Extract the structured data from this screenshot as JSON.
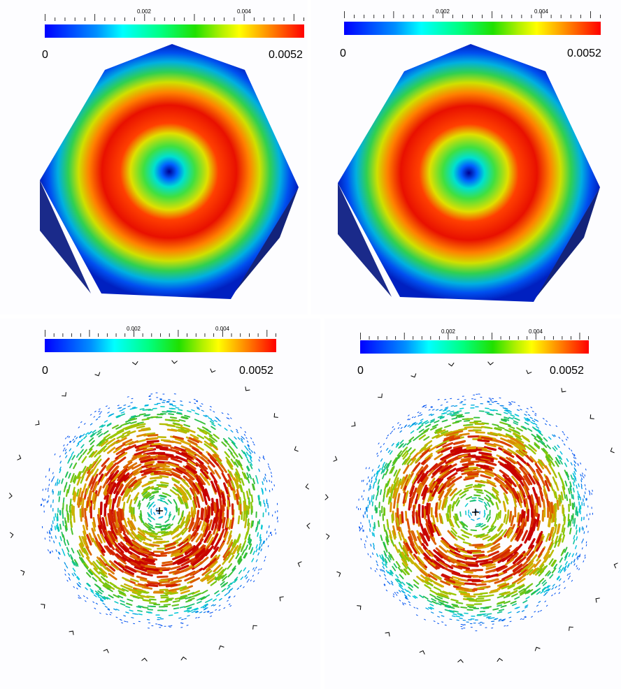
{
  "colorbar": {
    "min_label": "0",
    "max_label": "0.0052",
    "tick_labels": [
      "0.002",
      "0.004"
    ],
    "min": 0,
    "max": 0.0052
  },
  "panels": [
    {
      "id": "top-left-contour",
      "kind": "contour"
    },
    {
      "id": "top-right-contour",
      "kind": "contour"
    },
    {
      "id": "bottom-left-vectors",
      "kind": "vectors"
    },
    {
      "id": "bottom-right-vectors",
      "kind": "vectors"
    }
  ],
  "colors": {
    "colormap": [
      "#0000ff",
      "#00ffff",
      "#00ff80",
      "#ffff00",
      "#ff0000"
    ]
  }
}
